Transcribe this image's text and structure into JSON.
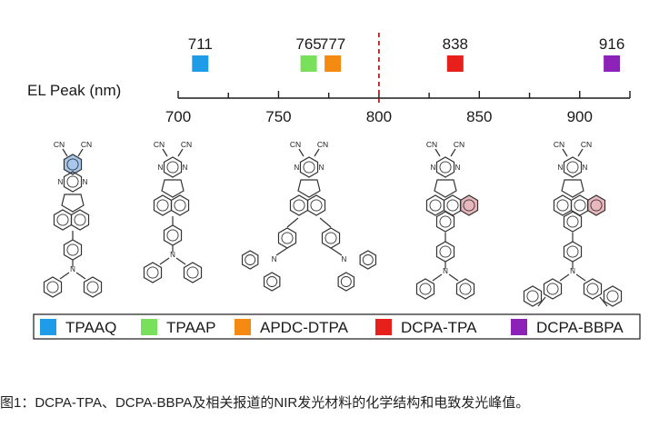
{
  "axis": {
    "label": "EL Peak (nm)",
    "ticks": [
      "700",
      "750",
      "800",
      "850",
      "900"
    ],
    "range": [
      700,
      925
    ],
    "divider_value": 800,
    "divider_color": "#b22222"
  },
  "peaks": [
    {
      "value": "711",
      "nm": 711,
      "color": "#1e9ce8",
      "name": "TPAAQ"
    },
    {
      "value": "765",
      "nm": 765,
      "color": "#78e05a",
      "name": "TPAAP"
    },
    {
      "value": "777",
      "nm": 777,
      "color": "#f58a12",
      "name": "APDC-DTPA"
    },
    {
      "value": "838",
      "nm": 838,
      "color": "#e8201c",
      "name": "DCPA-TPA"
    },
    {
      "value": "916",
      "nm": 916,
      "color": "#8c22b8",
      "name": "DCPA-BBPA"
    }
  ],
  "molecules": [
    {
      "name": "TPAAQ",
      "label_cn": "CN",
      "highlight": "#8ab4e6"
    },
    {
      "name": "TPAAP",
      "label_cn": "CN",
      "highlight": ""
    },
    {
      "name": "APDC-DTPA",
      "label_cn": "CN",
      "highlight": ""
    },
    {
      "name": "DCPA-TPA",
      "label_cn": "CN",
      "highlight": "#e0a0a8"
    },
    {
      "name": "DCPA-BBPA",
      "label_cn": "CN",
      "highlight": "#e0a0a8"
    }
  ],
  "atom_labels": {
    "N": "N",
    "CN": "CN"
  },
  "legend": [
    {
      "label": "TPAAQ",
      "color": "#1e9ce8"
    },
    {
      "label": "TPAAP",
      "color": "#78e05a"
    },
    {
      "label": "APDC-DTPA",
      "color": "#f58a12"
    },
    {
      "label": "DCPA-TPA",
      "color": "#e8201c"
    },
    {
      "label": "DCPA-BBPA",
      "color": "#8c22b8"
    }
  ],
  "caption": "图1：DCPA-TPA、DCPA-BBPA及相关报道的NIR发光材料的化学结构和电致发光峰值。"
}
